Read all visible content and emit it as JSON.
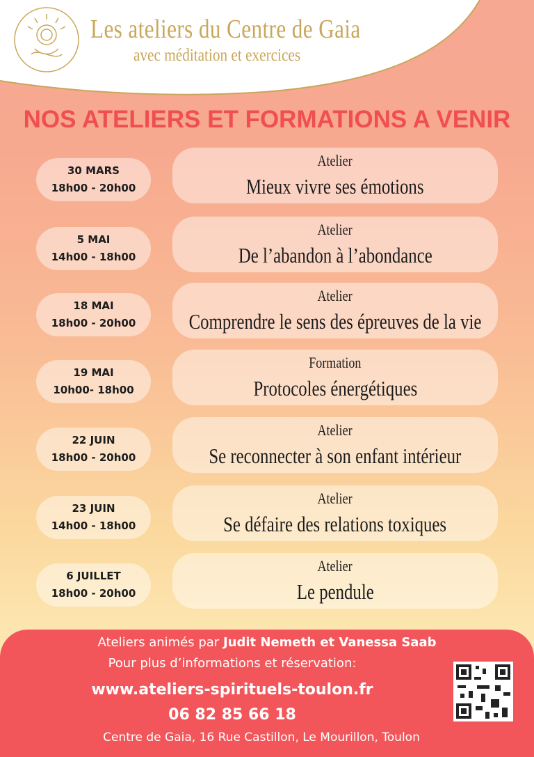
{
  "header": {
    "title": "Les ateliers du Centre de Gaia",
    "subtitle": "avec méditation et exercices"
  },
  "heading": "NOS ATELIERS ET FORMATIONS A VENIR",
  "events": [
    {
      "date": "30 MARS",
      "time": "18h00 - 20h00",
      "kind": "Atelier",
      "title": "Mieux vivre ses émotions"
    },
    {
      "date": "5 MAI",
      "time": "14h00 - 18h00",
      "kind": "Atelier",
      "title": "De l’abandon à l’abondance"
    },
    {
      "date": "18 MAI",
      "time": "18h00 - 20h00",
      "kind": "Atelier",
      "title": "Comprendre le sens des épreuves de la vie"
    },
    {
      "date": "19 MAI",
      "time": "10h00- 18h00",
      "kind": "Formation",
      "title": "Protocoles énergétiques"
    },
    {
      "date": "22 JUIN",
      "time": "18h00 - 20h00",
      "kind": "Atelier",
      "title": "Se reconnecter à son enfant intérieur"
    },
    {
      "date": "23 JUIN",
      "time": "14h00 - 18h00",
      "kind": "Atelier",
      "title": "Se défaire des relations toxiques"
    },
    {
      "date": "6 JUILLET",
      "time": "18h00 - 20h00",
      "kind": "Atelier",
      "title": "Le pendule"
    }
  ],
  "footer": {
    "hosts_prefix": "Ateliers animés par",
    "hosts": "Judit Nemeth et Vanessa Saab",
    "info": "Pour plus d’informations et réservation:",
    "website": "www.ateliers-spirituels-toulon.fr",
    "phone": "06 82 85 66 18",
    "address": "Centre de Gaia, 16 Rue Castillon, Le Mourillon, Toulon"
  }
}
